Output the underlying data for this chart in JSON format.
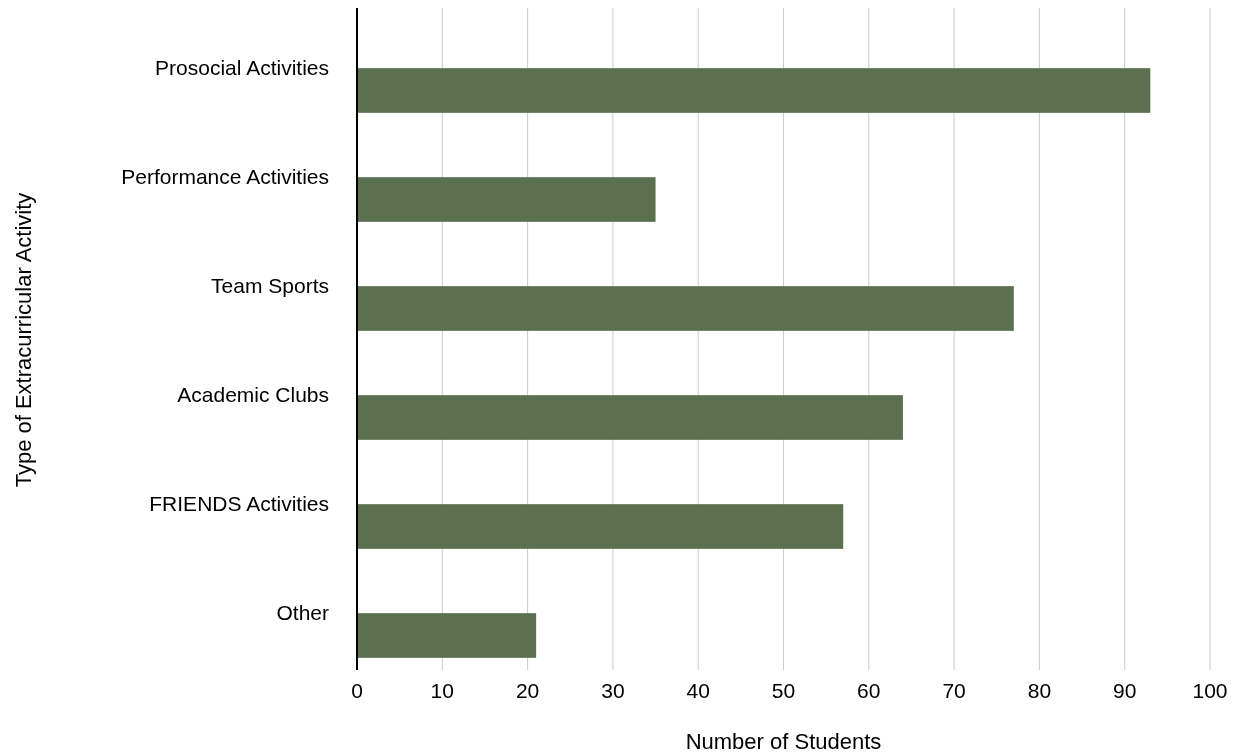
{
  "chart_data": {
    "type": "bar",
    "orientation": "horizontal",
    "xlabel": "Number of Students",
    "ylabel": "Type of Extracurricular Activity",
    "categories": [
      "Prosocial Activities",
      "Performance Activities",
      "Team Sports",
      "Academic Clubs",
      "FRIENDS Activities",
      "Other"
    ],
    "values": [
      93,
      35,
      77,
      64,
      57,
      21
    ],
    "color": "#5b704f",
    "xlim": [
      0,
      100
    ],
    "xticks": [
      0,
      10,
      20,
      30,
      40,
      50,
      60,
      70,
      80,
      90,
      100
    ],
    "grid": "x"
  }
}
